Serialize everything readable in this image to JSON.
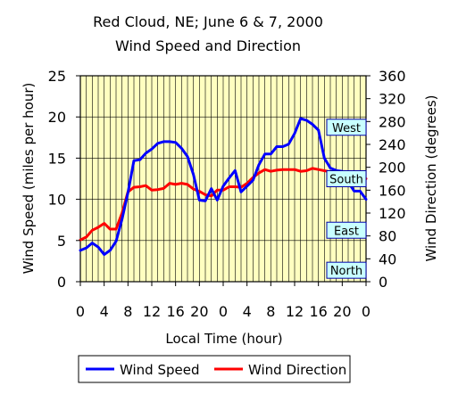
{
  "chart_data": {
    "type": "line",
    "title": "Red Cloud, NE; June 6 & 7, 2000",
    "subtitle": "Wind Speed and Direction",
    "xlabel": "Local Time (hour)",
    "ylabel": "Wind Speed (miles per hour)",
    "y2label": "Wind Direction (degrees)",
    "x_tick_labels": [
      "0",
      "4",
      "8",
      "12",
      "16",
      "20",
      "0",
      "4",
      "8",
      "12",
      "16",
      "20",
      "0"
    ],
    "x_range": [
      0,
      48
    ],
    "ylim": [
      0,
      25
    ],
    "y_ticks": [
      0,
      5,
      10,
      15,
      20,
      25
    ],
    "y2lim": [
      0,
      360
    ],
    "y2_ticks": [
      0,
      40,
      80,
      120,
      160,
      200,
      240,
      280,
      320,
      360
    ],
    "grid": true,
    "legend_position": "bottom",
    "colors": {
      "plot_background": "#FFFFC0",
      "wind_speed": "#0000FF",
      "wind_direction": "#FF0000",
      "direction_label_fill": "#C8FFFF",
      "direction_label_border": "#0000AA"
    },
    "series": [
      {
        "name": "Wind Speed",
        "axis": "left",
        "x": [
          0,
          1,
          2,
          3,
          4,
          5,
          6,
          7,
          8,
          9,
          10,
          11,
          12,
          13,
          14,
          15,
          16,
          17,
          18,
          19,
          20,
          21,
          22,
          23,
          24,
          25,
          26,
          27,
          28,
          29,
          30,
          31,
          32,
          33,
          34,
          35,
          36,
          37,
          38,
          39,
          40,
          41,
          42,
          43,
          44,
          45,
          46,
          47,
          48
        ],
        "values": [
          3.8,
          4.1,
          4.7,
          4.2,
          3.3,
          3.8,
          4.9,
          7.6,
          10.8,
          14.7,
          14.8,
          15.6,
          16.1,
          16.8,
          17.0,
          17.0,
          16.9,
          16.2,
          15.2,
          13.0,
          9.9,
          9.8,
          11.3,
          9.9,
          11.6,
          12.6,
          13.5,
          10.9,
          11.6,
          12.3,
          14.2,
          15.5,
          15.5,
          16.4,
          16.4,
          16.7,
          18.0,
          19.8,
          19.6,
          19.1,
          18.4,
          15.0,
          13.8,
          13.5,
          13.4,
          12.1,
          11.0,
          11.0,
          10.0
        ]
      },
      {
        "name": "Wind Direction",
        "axis": "right",
        "x": [
          0,
          1,
          2,
          3,
          4,
          5,
          6,
          7,
          8,
          9,
          10,
          11,
          12,
          13,
          14,
          15,
          16,
          17,
          18,
          19,
          20,
          21,
          22,
          23,
          24,
          25,
          26,
          27,
          28,
          29,
          30,
          31,
          32,
          33,
          34,
          35,
          36,
          37,
          38,
          39,
          40,
          41,
          42,
          43,
          44,
          45,
          46,
          47,
          48
        ],
        "values": [
          73,
          78,
          90,
          95,
          102,
          92,
          92,
          120,
          157,
          165,
          166,
          168,
          160,
          161,
          163,
          172,
          170,
          172,
          170,
          162,
          158,
          152,
          150,
          160,
          160,
          166,
          166,
          165,
          172,
          182,
          190,
          196,
          193,
          195,
          196,
          196,
          196,
          193,
          194,
          198,
          196,
          194,
          192,
          190,
          188,
          186,
          184,
          182,
          180
        ]
      }
    ],
    "direction_labels": [
      {
        "label": "West",
        "value": 270
      },
      {
        "label": "South",
        "value": 180
      },
      {
        "label": "East",
        "value": 90
      },
      {
        "label": "North",
        "value": 20
      }
    ]
  }
}
